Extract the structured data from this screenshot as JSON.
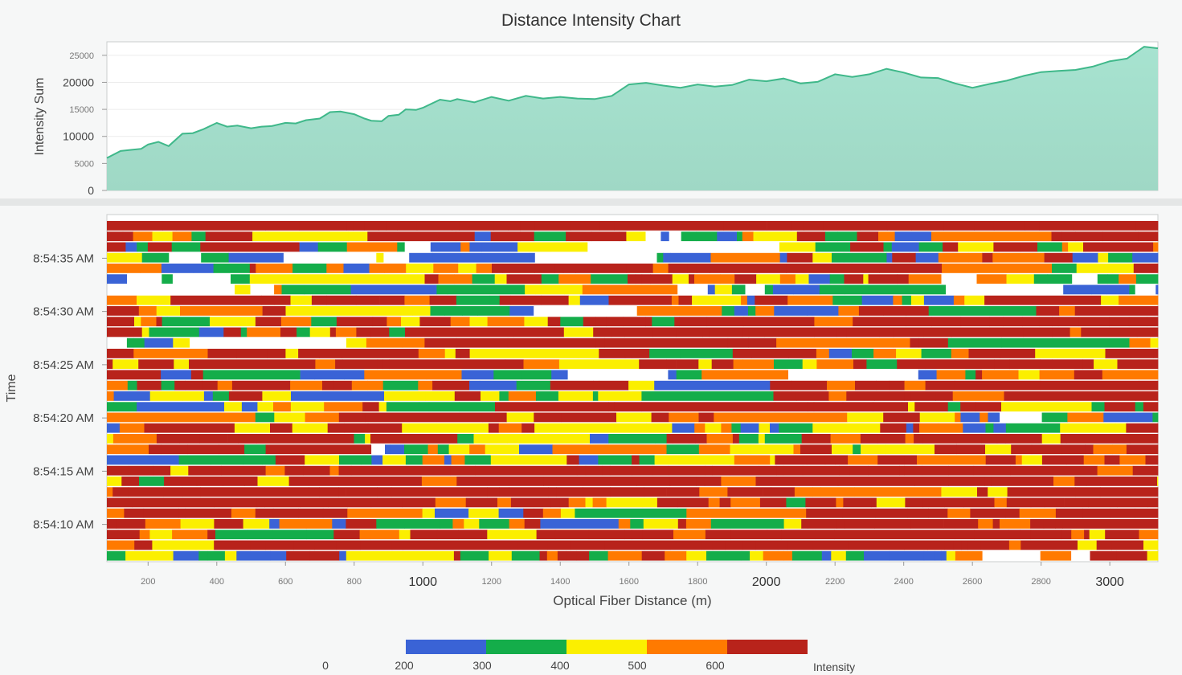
{
  "title": "Distance Intensity Chart",
  "colors": {
    "area_fill_top": "#a7e3d0",
    "area_fill_bottom": "#9fd8c5",
    "area_line": "#3fb88a",
    "heat_background": "#ffffff"
  },
  "chart_data": [
    {
      "type": "area",
      "title": "Distance Intensity Chart",
      "xlabel": "",
      "ylabel": "Intensity Sum",
      "xlim": [
        80,
        3140
      ],
      "ylim": [
        0,
        27500
      ],
      "y_ticks": [
        {
          "value": 0,
          "label": "0",
          "major": true
        },
        {
          "value": 5000,
          "label": "5000",
          "major": false
        },
        {
          "value": 10000,
          "label": "10000",
          "major": true
        },
        {
          "value": 15000,
          "label": "15000",
          "major": false
        },
        {
          "value": 20000,
          "label": "20000",
          "major": true
        },
        {
          "value": 25000,
          "label": "25000",
          "major": false
        }
      ],
      "grid": true,
      "x": [
        80,
        120,
        150,
        180,
        200,
        230,
        260,
        300,
        330,
        360,
        400,
        430,
        460,
        500,
        530,
        560,
        600,
        630,
        660,
        700,
        730,
        760,
        800,
        830,
        850,
        880,
        900,
        930,
        950,
        980,
        1000,
        1050,
        1080,
        1100,
        1150,
        1200,
        1250,
        1300,
        1350,
        1400,
        1450,
        1500,
        1550,
        1600,
        1650,
        1700,
        1750,
        1800,
        1850,
        1900,
        1950,
        2000,
        2050,
        2100,
        2150,
        2200,
        2250,
        2300,
        2350,
        2400,
        2450,
        2500,
        2550,
        2600,
        2650,
        2700,
        2750,
        2800,
        2850,
        2900,
        2950,
        3000,
        3050,
        3100,
        3140
      ],
      "series": [
        {
          "values": [
            6000,
            7300,
            7500,
            7700,
            8500,
            9000,
            8200,
            10500,
            10600,
            11300,
            12500,
            11800,
            12000,
            11500,
            11800,
            11900,
            12500,
            12400,
            13000,
            13300,
            14500,
            14600,
            14100,
            13300,
            12900,
            12800,
            13800,
            14000,
            15000,
            14900,
            15300,
            16800,
            16500,
            16900,
            16300,
            17300,
            16600,
            17500,
            17000,
            17300,
            17000,
            16900,
            17500,
            19600,
            19900,
            19400,
            19000,
            19600,
            19200,
            19500,
            20500,
            20200,
            20700,
            19800,
            20100,
            21500,
            21000,
            21500,
            22500,
            21800,
            20900,
            20800,
            19800,
            19000,
            19700,
            20300,
            21200,
            21900,
            22100,
            22300,
            22900,
            23900,
            24400,
            26600,
            26300
          ]
        }
      ]
    },
    {
      "type": "heatmap",
      "xlabel": "Optical Fiber Distance (m)",
      "ylabel": "Time",
      "xlim": [
        80,
        3140
      ],
      "x_ticks": [
        {
          "value": 200,
          "label": "200",
          "major": false
        },
        {
          "value": 400,
          "label": "400",
          "major": false
        },
        {
          "value": 600,
          "label": "600",
          "major": false
        },
        {
          "value": 800,
          "label": "800",
          "major": false
        },
        {
          "value": 1000,
          "label": "1000",
          "major": true
        },
        {
          "value": 1200,
          "label": "1200",
          "major": false
        },
        {
          "value": 1400,
          "label": "1400",
          "major": false
        },
        {
          "value": 1600,
          "label": "1600",
          "major": false
        },
        {
          "value": 1800,
          "label": "1800",
          "major": false
        },
        {
          "value": 2000,
          "label": "2000",
          "major": true
        },
        {
          "value": 2200,
          "label": "2200",
          "major": false
        },
        {
          "value": 2400,
          "label": "2400",
          "major": false
        },
        {
          "value": 2600,
          "label": "2600",
          "major": false
        },
        {
          "value": 2800,
          "label": "2800",
          "major": false
        },
        {
          "value": 3000,
          "label": "3000",
          "major": true
        }
      ],
      "y_ticks": [
        {
          "label": "8:54:35 AM",
          "row": 3
        },
        {
          "label": "8:54:30 AM",
          "row": 8
        },
        {
          "label": "8:54:25 AM",
          "row": 13
        },
        {
          "label": "8:54:20 AM",
          "row": 18
        },
        {
          "label": "8:54:15 AM",
          "row": 23
        },
        {
          "label": "8:54:10 AM",
          "row": 28
        }
      ],
      "row_count": 32,
      "row_intensity": [
        0.85,
        0.5,
        0.4,
        0.3,
        0.6,
        0.4,
        0.25,
        0.55,
        0.5,
        0.6,
        0.7,
        0.4,
        0.55,
        0.65,
        0.4,
        0.6,
        0.5,
        0.55,
        0.45,
        0.5,
        0.6,
        0.45,
        0.55,
        0.8,
        0.7,
        0.75,
        0.75,
        0.6,
        0.55,
        0.7,
        0.8,
        0.4
      ],
      "legend": {
        "title": "Intensity",
        "bins": [
          {
            "range": [
              200,
              300
            ],
            "color": "#3a63d6"
          },
          {
            "range": [
              300,
              400
            ],
            "color": "#14ad4a"
          },
          {
            "range": [
              400,
              500
            ],
            "color": "#fbef00"
          },
          {
            "range": [
              500,
              600
            ],
            "color": "#ff7a00"
          },
          {
            "range": [
              600,
              700
            ],
            "color": "#b8231b"
          }
        ],
        "tick_labels": [
          "0",
          "200",
          "300",
          "400",
          "500",
          "600"
        ]
      }
    }
  ]
}
